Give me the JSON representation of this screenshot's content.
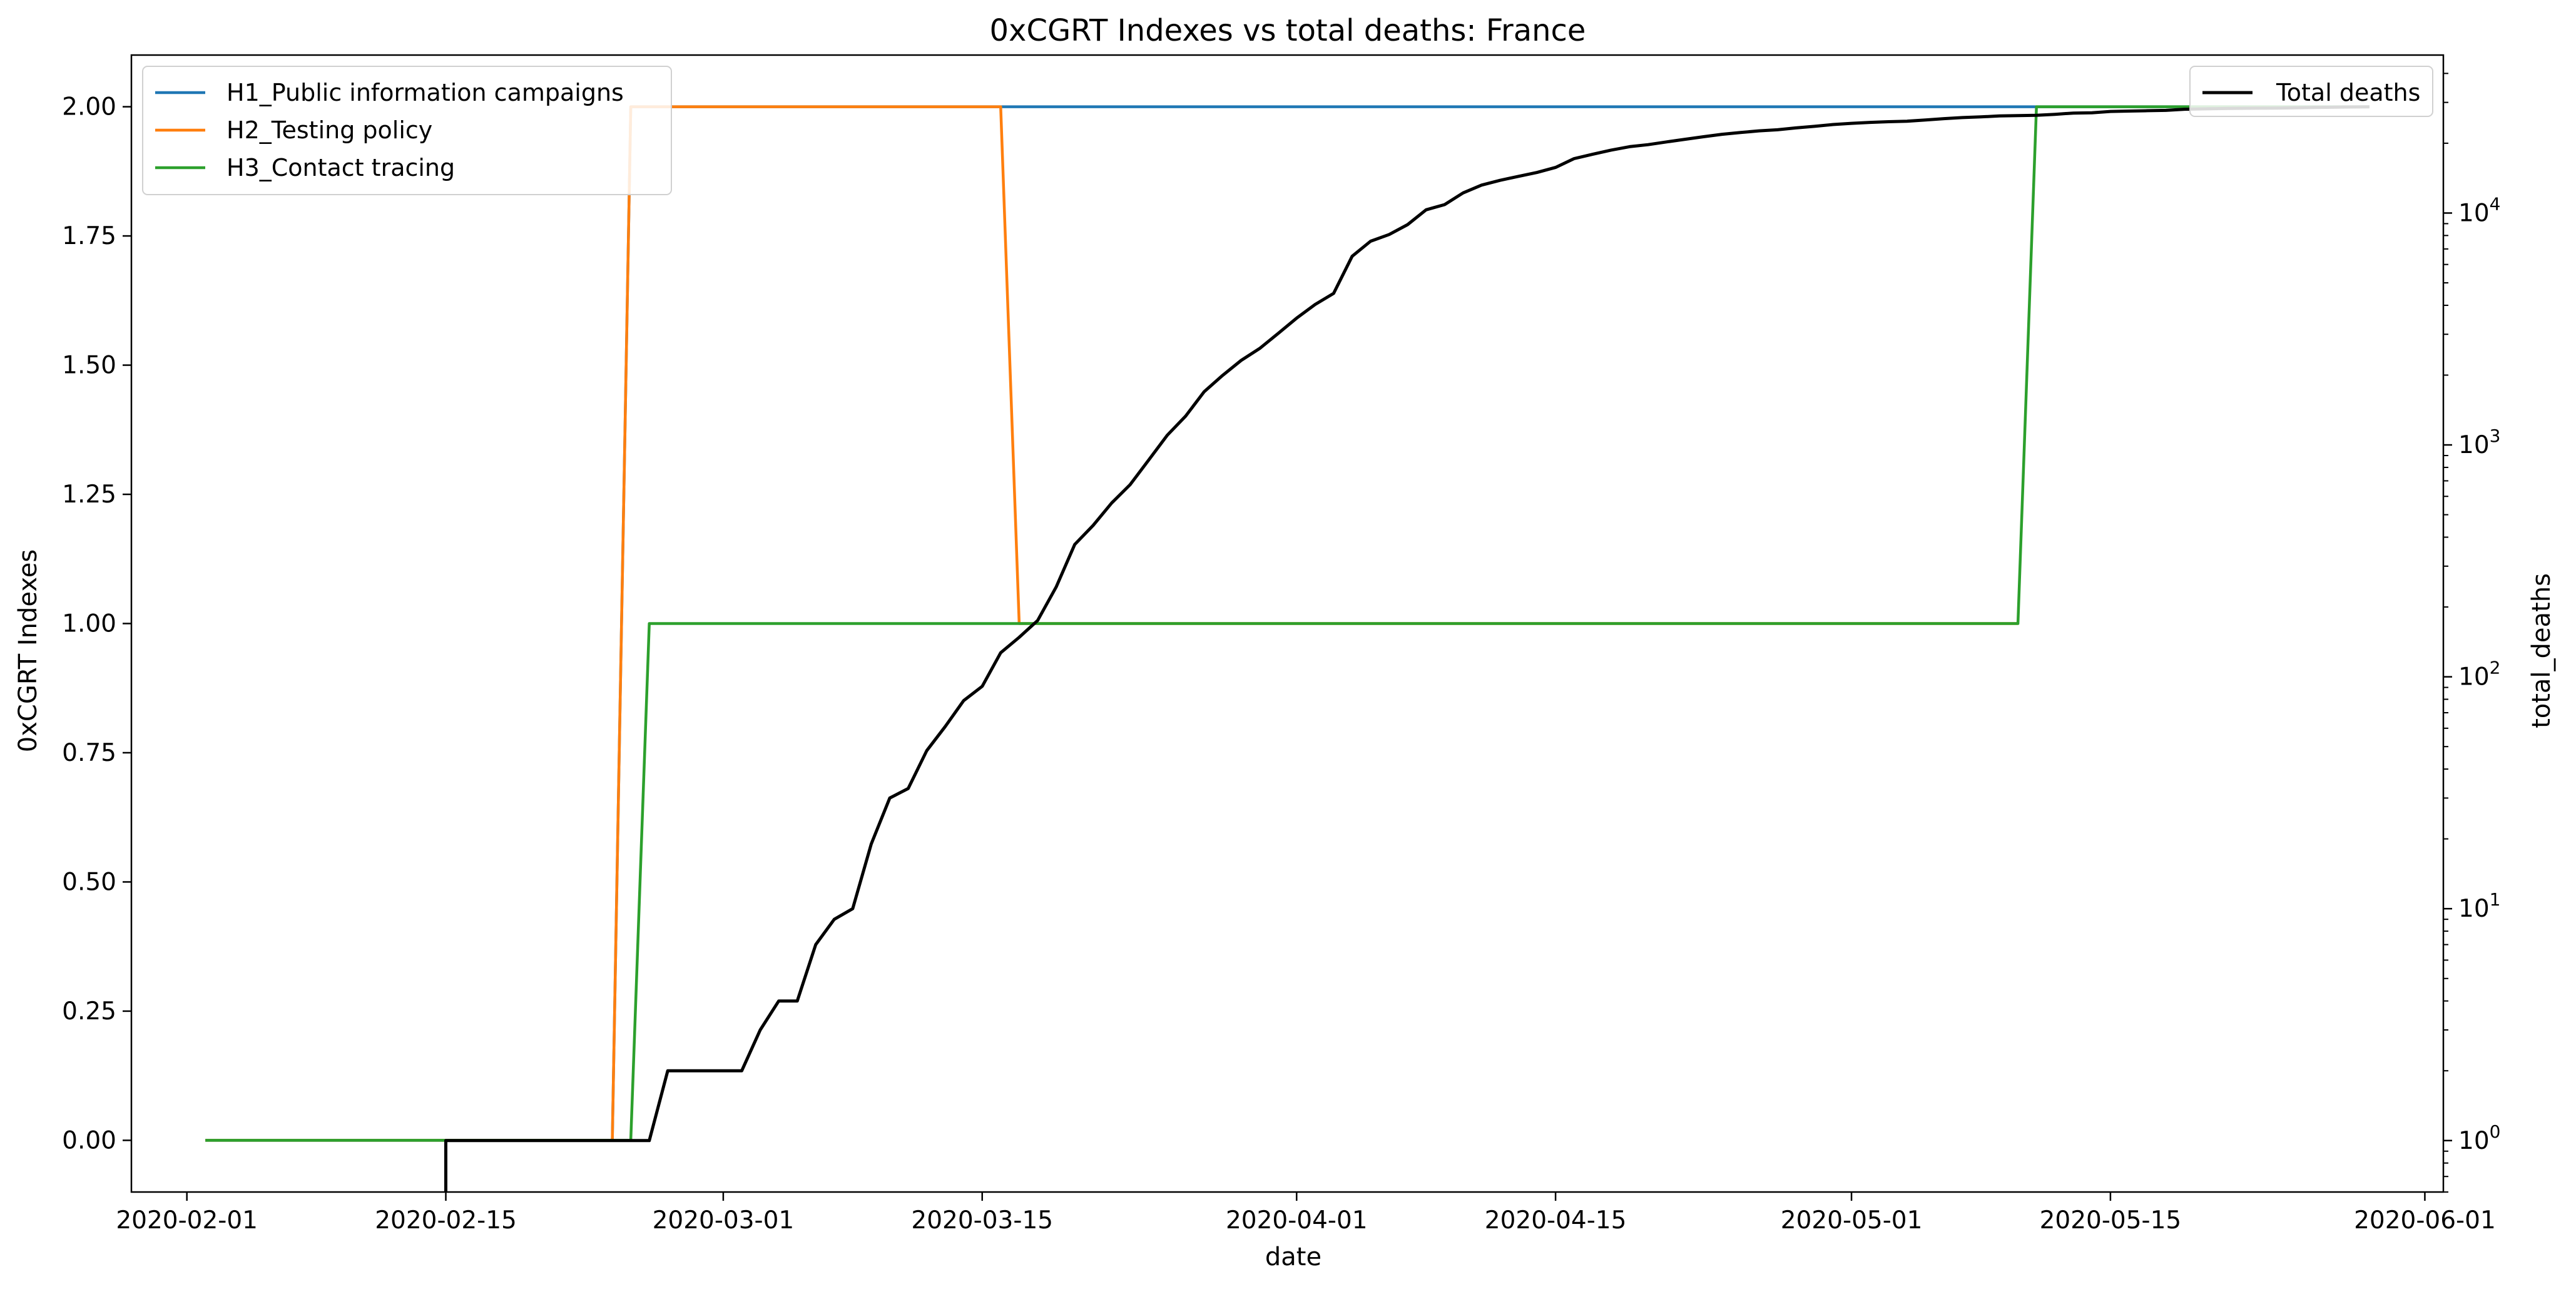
{
  "chart_data": {
    "type": "line",
    "title": "0xCGRT Indexes vs total deaths:  France",
    "xlabel": "date",
    "ylabel_left": "0xCGRT Indexes",
    "ylabel_right": "total_deaths",
    "x_range": [
      "2020-01-29",
      "2020-06-02"
    ],
    "x_ticks": [
      "2020-02-01",
      "2020-02-15",
      "2020-03-01",
      "2020-03-15",
      "2020-04-01",
      "2020-04-15",
      "2020-05-01",
      "2020-05-15",
      "2020-06-01"
    ],
    "y_left_range": [
      -0.1,
      2.1
    ],
    "y_left_ticks": [
      "0.00",
      "0.25",
      "0.50",
      "0.75",
      "1.00",
      "1.25",
      "1.50",
      "1.75",
      "2.00"
    ],
    "y_right_scale": "log",
    "y_right_range": [
      0.6,
      48000
    ],
    "y_right_ticks": [
      {
        "value": 1,
        "base": "10",
        "exp": "0"
      },
      {
        "value": 10,
        "base": "10",
        "exp": "1"
      },
      {
        "value": 100,
        "base": "10",
        "exp": "2"
      },
      {
        "value": 1000,
        "base": "10",
        "exp": "3"
      },
      {
        "value": 10000,
        "base": "10",
        "exp": "4"
      }
    ],
    "legend_left": {
      "placement": "upper-left"
    },
    "legend_right": {
      "placement": "upper-right"
    },
    "grid": false,
    "series": [
      {
        "name": "H1_Public information campaigns",
        "axis": "left",
        "color": "#1f77b4",
        "points": [
          [
            "2020-02-02",
            0
          ],
          [
            "2020-02-24",
            0
          ],
          [
            "2020-02-25",
            2
          ],
          [
            "2020-05-29",
            2
          ]
        ]
      },
      {
        "name": "H2_Testing policy",
        "axis": "left",
        "color": "#ff7f0e",
        "points": [
          [
            "2020-02-02",
            0
          ],
          [
            "2020-02-24",
            0
          ],
          [
            "2020-02-25",
            2
          ],
          [
            "2020-03-16",
            2
          ],
          [
            "2020-03-17",
            1
          ],
          [
            "2020-05-10",
            1
          ]
        ]
      },
      {
        "name": "H3_Contact tracing",
        "axis": "left",
        "color": "#2ca02c",
        "points": [
          [
            "2020-02-02",
            0
          ],
          [
            "2020-02-25",
            0
          ],
          [
            "2020-02-26",
            1
          ],
          [
            "2020-05-10",
            1
          ],
          [
            "2020-05-11",
            2
          ],
          [
            "2020-05-29",
            2
          ]
        ]
      },
      {
        "name": "Total deaths",
        "axis": "right",
        "color": "#000000",
        "points": [
          [
            "2020-02-15",
            0.5
          ],
          [
            "2020-02-15",
            1
          ],
          [
            "2020-02-26",
            1
          ],
          [
            "2020-02-27",
            2
          ],
          [
            "2020-03-01",
            2
          ],
          [
            "2020-03-02",
            2
          ],
          [
            "2020-03-03",
            3
          ],
          [
            "2020-03-04",
            4
          ],
          [
            "2020-03-05",
            4
          ],
          [
            "2020-03-06",
            7
          ],
          [
            "2020-03-07",
            9
          ],
          [
            "2020-03-08",
            10
          ],
          [
            "2020-03-09",
            19
          ],
          [
            "2020-03-10",
            30
          ],
          [
            "2020-03-11",
            33
          ],
          [
            "2020-03-12",
            48
          ],
          [
            "2020-03-13",
            61
          ],
          [
            "2020-03-14",
            79
          ],
          [
            "2020-03-15",
            91
          ],
          [
            "2020-03-16",
            127
          ],
          [
            "2020-03-17",
            148
          ],
          [
            "2020-03-18",
            175
          ],
          [
            "2020-03-19",
            244
          ],
          [
            "2020-03-20",
            372
          ],
          [
            "2020-03-21",
            450
          ],
          [
            "2020-03-22",
            562
          ],
          [
            "2020-03-23",
            674
          ],
          [
            "2020-03-24",
            860
          ],
          [
            "2020-03-25",
            1100
          ],
          [
            "2020-03-26",
            1331
          ],
          [
            "2020-03-27",
            1696
          ],
          [
            "2020-03-28",
            1995
          ],
          [
            "2020-03-29",
            2314
          ],
          [
            "2020-03-30",
            2606
          ],
          [
            "2020-03-31",
            3024
          ],
          [
            "2020-04-01",
            3523
          ],
          [
            "2020-04-02",
            4032
          ],
          [
            "2020-04-03",
            4503
          ],
          [
            "2020-04-04",
            6507
          ],
          [
            "2020-04-05",
            7560
          ],
          [
            "2020-04-06",
            8078
          ],
          [
            "2020-04-07",
            8911
          ],
          [
            "2020-04-08",
            10328
          ],
          [
            "2020-04-09",
            10869
          ],
          [
            "2020-04-10",
            12210
          ],
          [
            "2020-04-11",
            13197
          ],
          [
            "2020-04-12",
            13832
          ],
          [
            "2020-04-13",
            14393
          ],
          [
            "2020-04-14",
            14967
          ],
          [
            "2020-04-15",
            15729
          ],
          [
            "2020-04-16",
            17167
          ],
          [
            "2020-04-17",
            17920
          ],
          [
            "2020-04-18",
            18681
          ],
          [
            "2020-04-19",
            19323
          ],
          [
            "2020-04-20",
            19718
          ],
          [
            "2020-04-21",
            20265
          ],
          [
            "2020-04-22",
            20796
          ],
          [
            "2020-04-23",
            21340
          ],
          [
            "2020-04-24",
            21856
          ],
          [
            "2020-04-25",
            22245
          ],
          [
            "2020-04-26",
            22614
          ],
          [
            "2020-04-27",
            22856
          ],
          [
            "2020-04-28",
            23293
          ],
          [
            "2020-04-29",
            23660
          ],
          [
            "2020-04-30",
            24087
          ],
          [
            "2020-05-01",
            24376
          ],
          [
            "2020-05-02",
            24594
          ],
          [
            "2020-05-03",
            24760
          ],
          [
            "2020-05-04",
            24895
          ],
          [
            "2020-05-05",
            25201
          ],
          [
            "2020-05-06",
            25531
          ],
          [
            "2020-05-07",
            25809
          ],
          [
            "2020-05-08",
            25987
          ],
          [
            "2020-05-09",
            26230
          ],
          [
            "2020-05-10",
            26310
          ],
          [
            "2020-05-11",
            26380
          ],
          [
            "2020-05-12",
            26643
          ],
          [
            "2020-05-13",
            26991
          ],
          [
            "2020-05-14",
            27074
          ],
          [
            "2020-05-15",
            27425
          ],
          [
            "2020-05-16",
            27529
          ],
          [
            "2020-05-17",
            27625
          ],
          [
            "2020-05-18",
            27707
          ],
          [
            "2020-05-19",
            28022
          ],
          [
            "2020-05-20",
            28132
          ],
          [
            "2020-05-21",
            28215
          ],
          [
            "2020-05-22",
            28289
          ],
          [
            "2020-05-23",
            28332
          ],
          [
            "2020-05-24",
            28367
          ],
          [
            "2020-05-25",
            28432
          ],
          [
            "2020-05-26",
            28530
          ],
          [
            "2020-05-27",
            28596
          ],
          [
            "2020-05-28",
            28662
          ],
          [
            "2020-05-29",
            28714
          ]
        ]
      }
    ]
  }
}
